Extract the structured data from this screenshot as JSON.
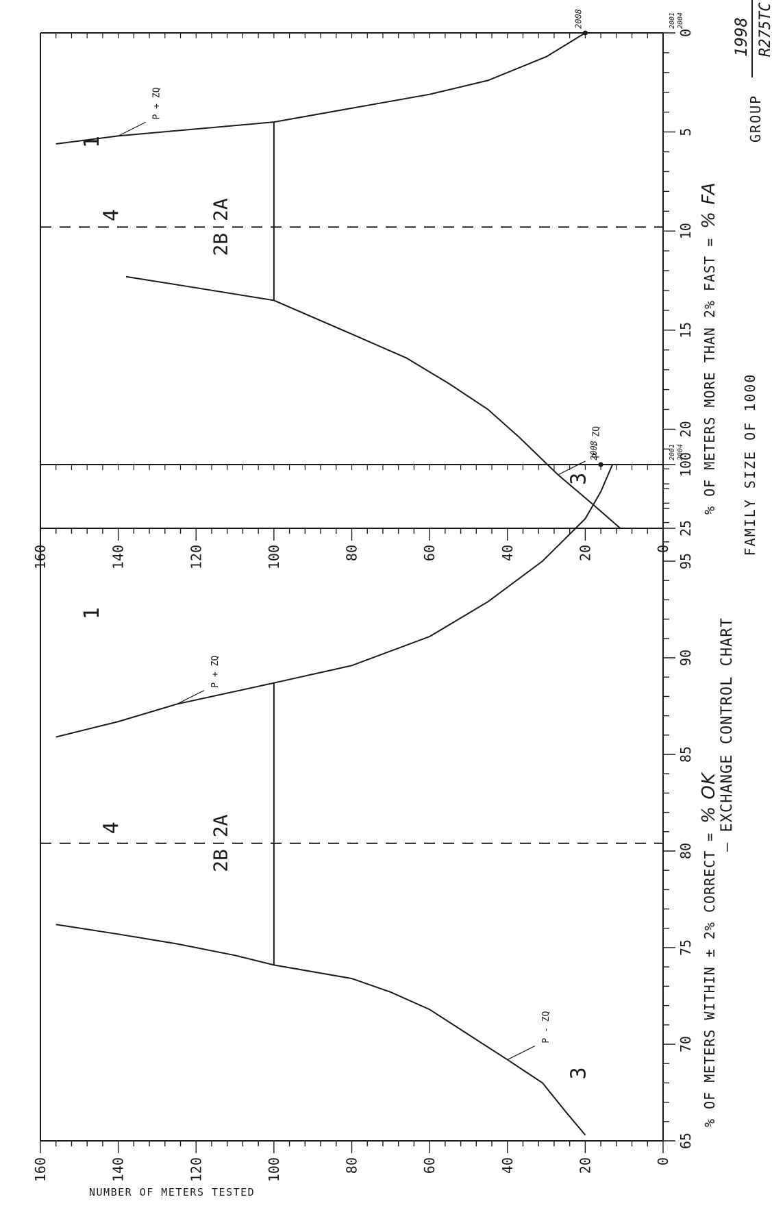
{
  "header": {
    "title": "FAMILY SIZE OF 1000",
    "title_partial": "— EXCHANGE CONTROL CHART",
    "group_label": "GROUP",
    "group_number": "1998",
    "group_code": "R275TC"
  },
  "colors": {
    "ink": "#1a1a1a",
    "paper": "#ffffff"
  },
  "chart_data": [
    {
      "type": "line",
      "name": "accuracy-panel",
      "xlabel_printed": "% OF METERS WITHIN ± 2% CORRECT =",
      "xlabel_handwritten": "% OK",
      "ylabel": "NUMBER OF METERS TESTED",
      "xlim": [
        65,
        100
      ],
      "ylim": [
        0,
        160
      ],
      "x_ticks": [
        "65",
        "70",
        "75",
        "80",
        "85",
        "90",
        "95",
        "100"
      ],
      "y_ticks": [
        "0",
        "20",
        "40",
        "60",
        "80",
        "100",
        "120",
        "140",
        "160"
      ],
      "series": [
        {
          "name": "P - ZQ",
          "x": [
            65.3,
            66.5,
            68,
            69.2,
            70.5,
            71.8,
            72.7,
            73.4,
            74.1,
            74.6,
            75.2,
            75.7,
            76.2
          ],
          "y": [
            20,
            25,
            31,
            40,
            50,
            60,
            70,
            80,
            100,
            110,
            125,
            140,
            156
          ]
        },
        {
          "name": "P + ZQ",
          "x": [
            85.9,
            86.7,
            87.6,
            88.7,
            89.6,
            91.1,
            92.9,
            95,
            97.2,
            98.6,
            100
          ],
          "y": [
            156,
            140,
            125,
            100,
            80,
            60,
            45,
            31,
            20,
            16,
            13
          ]
        }
      ],
      "zones": [
        "1",
        "2B 2A",
        "3",
        "4"
      ],
      "reference_lines": [
        {
          "style": "dashed",
          "x": 80.4,
          "orientation": "vertical"
        },
        {
          "style": "solid",
          "y": 100,
          "x_range": [
            74.1,
            88.7
          ]
        }
      ],
      "annotations": [
        "P - ZQ",
        "P + ZQ",
        "2008",
        "2001",
        "2004"
      ],
      "marked_point": {
        "label": "2008",
        "x": 100,
        "y": 16
      },
      "grid": false
    },
    {
      "type": "line",
      "name": "fast-panel",
      "xlabel_printed": "% OF METERS MORE THAN 2% FAST =",
      "xlabel_handwritten": "% FA",
      "xlim": [
        25,
        0
      ],
      "ylim": [
        0,
        160
      ],
      "x_ticks": [
        "25",
        "20",
        "15",
        "10",
        "5",
        "0"
      ],
      "y_ticks": [
        "0",
        "20",
        "40",
        "60",
        "80",
        "100",
        "120",
        "140",
        "160"
      ],
      "series": [
        {
          "name": "P - ZQ",
          "x": [
            25,
            23.8,
            22.3,
            20.4,
            19,
            17.7,
            16.4,
            15.2,
            13.5,
            12.8,
            12.3
          ],
          "y": [
            11,
            18,
            27,
            37,
            45,
            55,
            66,
            80,
            100,
            122,
            138
          ]
        },
        {
          "name": "P + ZQ",
          "x": [
            5.6,
            5.2,
            4.5,
            3.1,
            2.4,
            1.2,
            0
          ],
          "y": [
            156,
            140,
            100,
            60,
            45,
            30,
            20
          ]
        }
      ],
      "zones": [
        "1",
        "2B 2A",
        "3",
        "4"
      ],
      "reference_lines": [
        {
          "style": "dashed",
          "x": 9.8,
          "orientation": "vertical"
        },
        {
          "style": "solid",
          "y": 100,
          "x_range": [
            13.5,
            4.5
          ]
        }
      ],
      "annotations": [
        "P - ZQ",
        "P + ZQ",
        "2008",
        "2001",
        "2004"
      ],
      "marked_point": {
        "label": "2008",
        "x": 0,
        "y": 20
      },
      "grid": false
    }
  ]
}
